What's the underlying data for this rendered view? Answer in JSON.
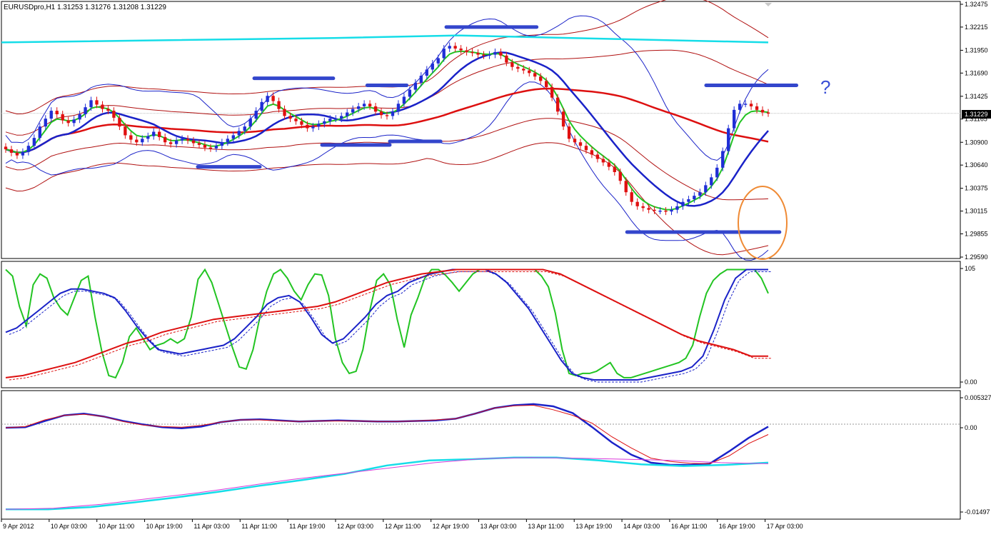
{
  "header": {
    "symbol_text": "EURUSDpro,H1  1.31253 1.31276 1.31208 1.31229"
  },
  "colors": {
    "bull": "#1f2ed6",
    "bear": "#e01010",
    "green": "#22c422",
    "blue": "#1a22c8",
    "red": "#dd1010",
    "darkred": "#b01010",
    "cyan": "#15dde8",
    "magenta": "#d83adb",
    "level": "#3346cc",
    "orange": "#ef8a34"
  },
  "chart_data": [
    {
      "type": "candlestick",
      "symbol": "EURUSDpro",
      "timeframe": "H1",
      "last_quote": {
        "open": 1.31253,
        "high": 1.31276,
        "low": 1.31208,
        "close": 1.31229
      },
      "current_price_label": "1.31229",
      "ylim": [
        1.2959,
        1.32475
      ],
      "y_ticks": [
        "1.32475",
        "1.32215",
        "1.31950",
        "1.31690",
        "1.31425",
        "1.31165",
        "1.30900",
        "1.30640",
        "1.30375",
        "1.30115",
        "1.29855",
        "1.29590"
      ],
      "x_ticks": [
        "9 Apr 2012",
        "10 Apr 03:00",
        "10 Apr 11:00",
        "10 Apr 19:00",
        "11 Apr 03:00",
        "11 Apr 11:00",
        "11 Apr 19:00",
        "12 Apr 03:00",
        "12 Apr 11:00",
        "12 Apr 19:00",
        "13 Apr 03:00",
        "13 Apr 11:00",
        "13 Apr 19:00",
        "14 Apr 03:00",
        "16 Apr 11:00",
        "16 Apr 19:00",
        "17 Apr 03:00"
      ],
      "x_range": [
        0,
        135
      ],
      "closes": [
        1.3082,
        1.3078,
        1.3075,
        1.3079,
        1.3086,
        1.3095,
        1.3108,
        1.3117,
        1.3126,
        1.3122,
        1.3115,
        1.3112,
        1.3116,
        1.3122,
        1.313,
        1.3138,
        1.3133,
        1.3128,
        1.3126,
        1.3118,
        1.3108,
        1.3098,
        1.3093,
        1.309,
        1.3094,
        1.3097,
        1.3102,
        1.3096,
        1.309,
        1.3088,
        1.3092,
        1.3094,
        1.3092,
        1.3089,
        1.3087,
        1.3084,
        1.3083,
        1.3086,
        1.309,
        1.3094,
        1.3098,
        1.3103,
        1.3108,
        1.3117,
        1.3126,
        1.3136,
        1.3143,
        1.3137,
        1.3128,
        1.312,
        1.3117,
        1.3114,
        1.311,
        1.3106,
        1.3108,
        1.3111,
        1.3114,
        1.3117,
        1.3117,
        1.312,
        1.3124,
        1.3128,
        1.3131,
        1.3134,
        1.3131,
        1.3125,
        1.3121,
        1.312,
        1.3125,
        1.3134,
        1.3142,
        1.315,
        1.3158,
        1.3166,
        1.3173,
        1.318,
        1.3186,
        1.3197,
        1.32,
        1.3197,
        1.3195,
        1.3193,
        1.3192,
        1.319,
        1.3189,
        1.319,
        1.3193,
        1.3189,
        1.3181,
        1.3176,
        1.3174,
        1.3172,
        1.3169,
        1.3165,
        1.316,
        1.3153,
        1.3141,
        1.3125,
        1.3108,
        1.3094,
        1.309,
        1.3086,
        1.3081,
        1.3076,
        1.3071,
        1.3067,
        1.3062,
        1.3056,
        1.3046,
        1.3033,
        1.3022,
        1.3017,
        1.3015,
        1.3013,
        1.3012,
        1.3012,
        1.3011,
        1.3013,
        1.3017,
        1.3022,
        1.3025,
        1.3029,
        1.3033,
        1.3041,
        1.305,
        1.3061,
        1.308,
        1.3106,
        1.3127,
        1.3134,
        1.3134,
        1.3131,
        1.3127,
        1.3124,
        1.3123
      ],
      "levels": [
        {
          "y": 1.32215,
          "x0": 78,
          "x1": 94
        },
        {
          "y": 1.3163,
          "x0": 44,
          "x1": 58
        },
        {
          "y": 1.3155,
          "x0": 64,
          "x1": 71
        },
        {
          "y": 1.3155,
          "x0": 124,
          "x1": 140
        },
        {
          "y": 1.3087,
          "x0": 56,
          "x1": 68
        },
        {
          "y": 1.3091,
          "x0": 68,
          "x1": 77
        },
        {
          "y": 1.3062,
          "x0": 34,
          "x1": 45
        },
        {
          "y": 1.29875,
          "x0": 110,
          "x1": 137
        }
      ],
      "annotations": [
        "?"
      ]
    },
    {
      "type": "line",
      "role": "stochastic oscillator",
      "ylim": [
        0,
        105
      ],
      "y_ticks": [
        "105",
        "0.00"
      ],
      "series": [
        {
          "role": "green",
          "values": [
            104,
            98,
            70,
            52,
            90,
            100,
            96,
            78,
            68,
            62,
            78,
            94,
            98,
            60,
            28,
            6,
            4,
            18,
            42,
            50,
            40,
            30,
            34,
            36,
            40,
            36,
            40,
            60,
            95,
            104,
            92,
            72,
            52,
            32,
            14,
            12,
            30,
            60,
            84,
            100,
            104,
            96,
            84,
            76,
            90,
            100,
            99,
            80,
            40,
            18,
            8,
            10,
            30,
            66,
            94,
            100,
            90,
            58,
            32,
            62,
            78,
            96,
            104,
            104,
            99,
            92,
            84,
            92,
            100,
            104,
            104,
            104,
            104,
            104,
            104,
            104,
            104,
            104,
            98,
            88,
            64,
            30,
            8,
            6,
            8,
            8,
            10,
            14,
            18,
            8,
            4,
            4,
            6,
            8,
            10,
            12,
            14,
            16,
            18,
            22,
            34,
            60,
            82,
            94,
            100,
            104,
            104,
            104,
            104,
            104,
            96,
            82
          ]
        },
        {
          "role": "blue",
          "values": [
            46,
            50,
            58,
            66,
            74,
            82,
            86,
            86,
            84,
            82,
            78,
            66,
            52,
            40,
            30,
            28,
            26,
            28,
            30,
            32,
            34,
            40,
            50,
            60,
            72,
            78,
            80,
            74,
            60,
            44,
            36,
            40,
            50,
            60,
            72,
            80,
            84,
            92,
            96,
            100,
            102,
            104,
            104,
            104,
            104,
            100,
            92,
            80,
            68,
            52,
            36,
            20,
            8,
            4,
            2,
            2,
            2,
            2,
            2,
            4,
            6,
            8,
            10,
            14,
            24,
            48,
            76,
            96,
            104,
            104,
            104
          ]
        },
        {
          "role": "red",
          "values": [
            4,
            6,
            10,
            14,
            18,
            24,
            30,
            36,
            40,
            46,
            50,
            54,
            58,
            60,
            62,
            64,
            66,
            68,
            70,
            74,
            80,
            86,
            92,
            96,
            100,
            102,
            104,
            104,
            104,
            104,
            104,
            104,
            100,
            92,
            84,
            76,
            68,
            60,
            52,
            44,
            38,
            34,
            30,
            24,
            24
          ]
        }
      ]
    },
    {
      "type": "line",
      "role": "oscillator",
      "ylim": [
        -0.01497,
        0.005327
      ],
      "y_ticks": [
        "0.005327",
        "0.00",
        "-0.01497"
      ],
      "series": [
        {
          "role": "blue",
          "values": [
            0.0,
            0.0001,
            0.0012,
            0.0022,
            0.0025,
            0.002,
            0.0012,
            0.0006,
            0.0001,
            -0.0001,
            0.0002,
            0.001,
            0.0014,
            0.0015,
            0.0013,
            0.0011,
            0.0012,
            0.0013,
            0.0012,
            0.0011,
            0.0011,
            0.0012,
            0.0013,
            0.0016,
            0.0025,
            0.0035,
            0.004,
            0.0042,
            0.0038,
            0.0026,
            0.0001,
            -0.0026,
            -0.0048,
            -0.0062,
            -0.0066,
            -0.0066,
            -0.0064,
            -0.0042,
            -0.0018,
            0.0002
          ]
        },
        {
          "role": "red",
          "values": [
            0.0,
            0.0002,
            0.0014,
            0.0022,
            0.0024,
            0.002,
            0.0011,
            0.0005,
            0.0002,
            0.0001,
            0.0004,
            0.001,
            0.0014,
            0.0014,
            0.0012,
            0.0011,
            0.0012,
            0.0012,
            0.0012,
            0.0011,
            0.0011,
            0.0012,
            0.0014,
            0.0016,
            0.0025,
            0.0035,
            0.0039,
            0.004,
            0.0032,
            0.0022,
            0.0008,
            -0.0016,
            -0.0036,
            -0.0054,
            -0.006,
            -0.0063,
            -0.0064,
            -0.005,
            -0.0028,
            -0.0012
          ]
        },
        {
          "role": "cyan",
          "values": [
            -0.0145,
            -0.0145,
            -0.0141,
            -0.0133,
            -0.0124,
            -0.0114,
            -0.0103,
            -0.0093,
            -0.0082,
            -0.0067,
            -0.0058,
            -0.0056,
            -0.0053,
            -0.0053,
            -0.0058,
            -0.0065,
            -0.0068,
            -0.0066,
            -0.0062
          ]
        },
        {
          "role": "magenta",
          "values": [
            -0.0145,
            -0.0143,
            -0.0136,
            -0.0126,
            -0.0116,
            -0.0104,
            -0.0092,
            -0.0082,
            -0.0072,
            -0.0062,
            -0.0055,
            -0.0053,
            -0.0054,
            -0.0056,
            -0.0058,
            -0.0062,
            -0.0064
          ]
        }
      ]
    }
  ]
}
